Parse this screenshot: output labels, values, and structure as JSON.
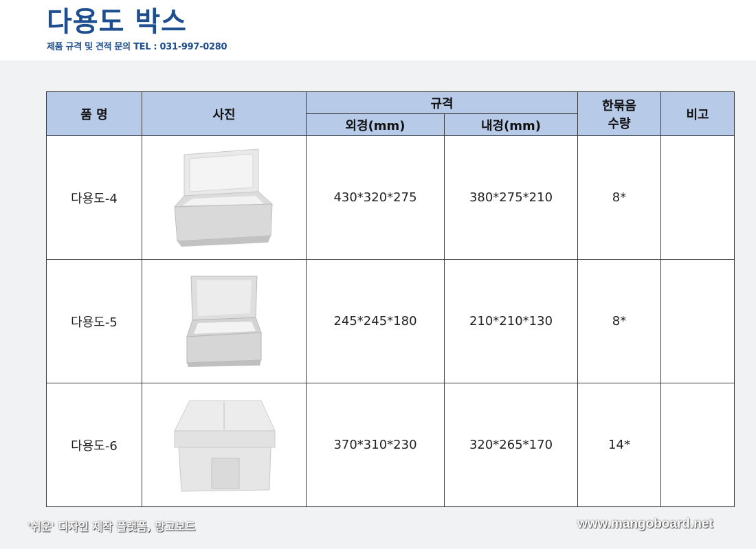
{
  "header": {
    "title": "다용도 박스",
    "subtitle": "제품 규격 및 견적  문의 TEL : 031-997-0280"
  },
  "table": {
    "headers": {
      "name": "품  명",
      "photo": "사진",
      "spec": "규격",
      "outer": "외경(mm)",
      "inner": "내경(mm)",
      "qty_line1": "한묶음",
      "qty_line2": "수량",
      "note": "비고"
    },
    "rows": [
      {
        "name": "다용도-4",
        "photo_icon": "foam-box-open-lid-icon",
        "outer": "430*320*275",
        "inner": "380*275*210",
        "qty": "8*",
        "note": ""
      },
      {
        "name": "다용도-5",
        "photo_icon": "foam-box-open-lid-icon",
        "outer": "245*245*180",
        "inner": "210*210*130",
        "qty": "8*",
        "note": ""
      },
      {
        "name": "다용도-6",
        "photo_icon": "foam-box-closed-icon",
        "outer": "370*310*230",
        "inner": "320*265*170",
        "qty": "14*",
        "note": ""
      }
    ]
  },
  "footer": {
    "left": "'쉬운' 디자인 제작 플랫폼, 망고보드",
    "right": "www.mangoboard.net"
  },
  "colors": {
    "title": "#1d4e8f",
    "header_bg": "#b7cae8",
    "page_bg": "#f1f2f4"
  }
}
